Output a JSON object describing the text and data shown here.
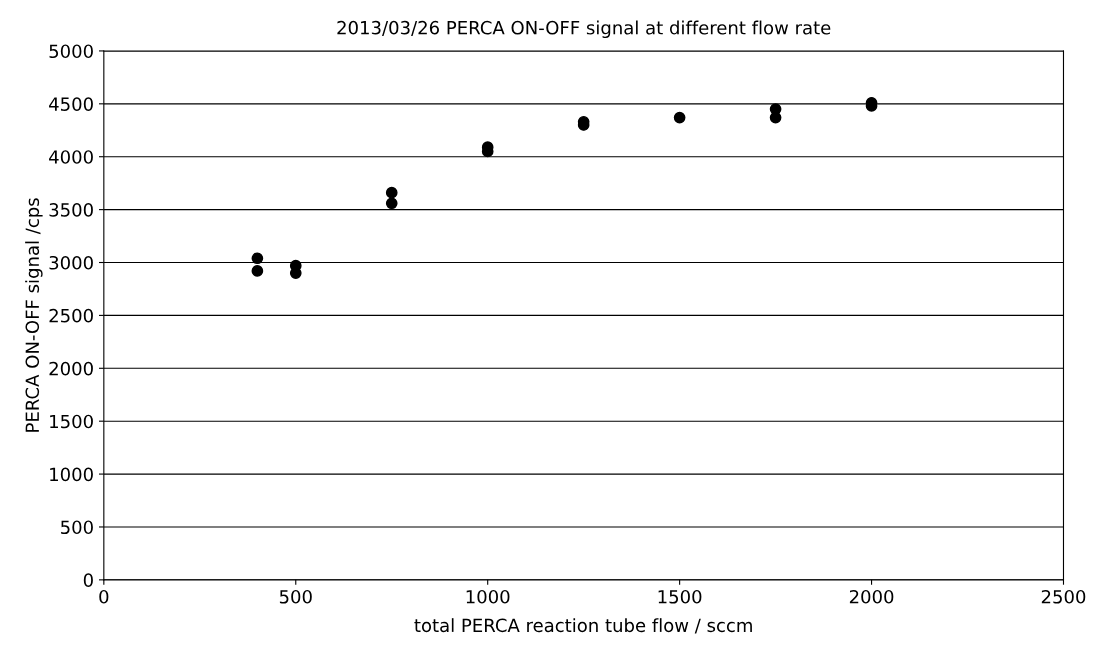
{
  "chart_data": {
    "type": "scatter",
    "title": "2013/03/26 PERCA ON-OFF signal at different flow rate",
    "xlabel": "total PERCA reaction tube flow / sccm",
    "ylabel": "PERCA ON-OFF signal /cps",
    "series": [
      {
        "color": "#000000",
        "x": [
          400,
          400,
          500,
          500,
          750,
          750,
          1000,
          1000,
          1250,
          1250,
          1500,
          1750,
          1750,
          2000,
          2000
        ],
        "values": [
          3040,
          2920,
          2970,
          2900,
          3660,
          3560,
          4090,
          4050,
          4330,
          4300,
          4370,
          4450,
          4370,
          4510,
          4480
        ]
      }
    ],
    "xlim": [
      0,
      2500
    ],
    "xticks": [
      0,
      500,
      1000,
      1500,
      2000,
      2500
    ],
    "ylim": [
      0,
      5000
    ],
    "yticks": [
      0,
      500,
      1000,
      1500,
      2000,
      2500,
      3000,
      3500,
      4000,
      4500,
      5000
    ],
    "grid": "y",
    "marker": "circle",
    "legend": false
  }
}
